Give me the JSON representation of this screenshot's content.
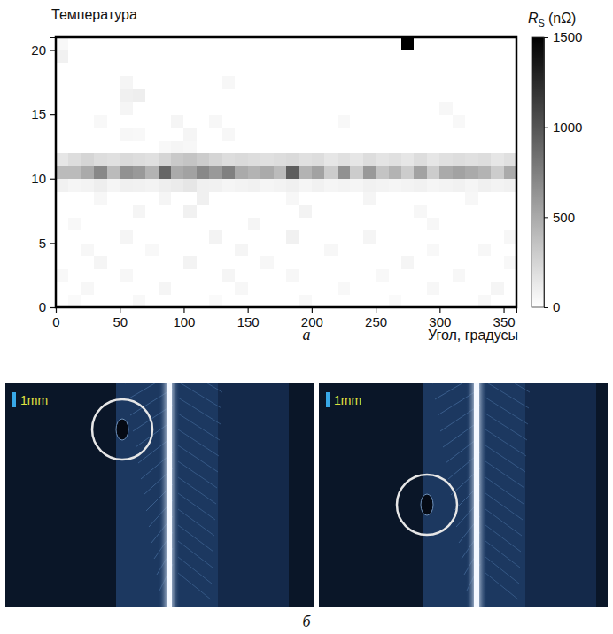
{
  "chart_data": {
    "type": "heatmap",
    "panel_label": "а",
    "y_label": "Температура",
    "x_label": "Угол, градусы",
    "xlim": [
      0,
      360
    ],
    "ylim": [
      0,
      21
    ],
    "xticks": [
      0,
      50,
      100,
      150,
      200,
      250,
      300,
      350
    ],
    "yticks": [
      0,
      5,
      10,
      15,
      20
    ],
    "x_edges": [
      0,
      10,
      20,
      30,
      40,
      50,
      60,
      70,
      80,
      90,
      100,
      110,
      120,
      130,
      140,
      150,
      160,
      170,
      180,
      190,
      200,
      210,
      220,
      230,
      240,
      250,
      260,
      270,
      280,
      290,
      300,
      310,
      320,
      330,
      340,
      350,
      360
    ],
    "y_edges": [
      0,
      1,
      2,
      3,
      4,
      5,
      6,
      7,
      8,
      9,
      10,
      11,
      12,
      13,
      14,
      15,
      16,
      17,
      18,
      19,
      20,
      21
    ],
    "cells": [
      [
        0,
        30,
        0,
        0,
        0,
        0,
        40,
        0,
        0,
        0,
        0,
        0,
        30,
        0,
        0,
        0,
        0,
        0,
        0,
        40,
        0,
        0,
        0,
        0,
        0,
        0,
        30,
        0,
        0,
        0,
        0,
        0,
        0,
        40,
        0,
        0
      ],
      [
        0,
        0,
        50,
        0,
        0,
        0,
        0,
        0,
        60,
        0,
        0,
        0,
        0,
        0,
        50,
        0,
        0,
        0,
        0,
        0,
        0,
        0,
        40,
        0,
        0,
        0,
        0,
        0,
        0,
        50,
        0,
        0,
        0,
        0,
        60,
        0
      ],
      [
        40,
        0,
        0,
        0,
        0,
        50,
        0,
        0,
        0,
        0,
        0,
        0,
        0,
        60,
        0,
        0,
        0,
        0,
        50,
        0,
        0,
        0,
        0,
        0,
        0,
        40,
        0,
        0,
        0,
        0,
        0,
        50,
        0,
        0,
        0,
        0
      ],
      [
        0,
        0,
        0,
        60,
        0,
        0,
        0,
        0,
        0,
        0,
        70,
        0,
        0,
        0,
        0,
        0,
        50,
        0,
        0,
        0,
        0,
        0,
        0,
        0,
        0,
        0,
        0,
        60,
        0,
        0,
        0,
        0,
        0,
        0,
        0,
        40
      ],
      [
        0,
        0,
        50,
        0,
        0,
        0,
        0,
        40,
        0,
        0,
        0,
        0,
        0,
        0,
        60,
        0,
        0,
        0,
        0,
        0,
        0,
        50,
        0,
        0,
        0,
        0,
        0,
        0,
        0,
        40,
        0,
        0,
        0,
        50,
        0,
        0
      ],
      [
        0,
        0,
        0,
        0,
        0,
        60,
        0,
        0,
        0,
        0,
        0,
        0,
        70,
        0,
        0,
        0,
        0,
        0,
        80,
        0,
        0,
        0,
        0,
        0,
        60,
        0,
        0,
        0,
        0,
        0,
        0,
        0,
        0,
        0,
        0,
        50
      ],
      [
        0,
        40,
        0,
        0,
        0,
        0,
        0,
        0,
        0,
        0,
        0,
        0,
        0,
        0,
        0,
        60,
        0,
        0,
        0,
        0,
        0,
        0,
        0,
        0,
        0,
        0,
        0,
        0,
        0,
        50,
        0,
        0,
        0,
        0,
        0,
        0
      ],
      [
        0,
        0,
        0,
        0,
        0,
        0,
        60,
        0,
        0,
        0,
        80,
        0,
        0,
        0,
        0,
        0,
        0,
        0,
        0,
        70,
        0,
        0,
        0,
        0,
        0,
        0,
        0,
        0,
        50,
        0,
        0,
        0,
        0,
        0,
        0,
        0
      ],
      [
        0,
        0,
        0,
        50,
        0,
        0,
        0,
        0,
        60,
        0,
        0,
        90,
        0,
        0,
        0,
        0,
        0,
        0,
        50,
        0,
        0,
        0,
        0,
        0,
        60,
        0,
        0,
        0,
        0,
        0,
        0,
        0,
        50,
        0,
        0,
        0
      ],
      [
        80,
        60,
        70,
        100,
        60,
        90,
        80,
        70,
        100,
        120,
        150,
        90,
        80,
        60,
        70,
        80,
        60,
        70,
        90,
        60,
        80,
        60,
        70,
        60,
        80,
        70,
        60,
        70,
        80,
        60,
        70,
        80,
        60,
        90,
        70,
        80
      ],
      [
        400,
        400,
        500,
        700,
        400,
        650,
        600,
        450,
        900,
        500,
        550,
        700,
        600,
        750,
        500,
        450,
        500,
        400,
        950,
        450,
        550,
        300,
        650,
        300,
        600,
        350,
        450,
        300,
        550,
        300,
        500,
        550,
        500,
        450,
        300,
        500
      ],
      [
        150,
        200,
        250,
        200,
        180,
        220,
        200,
        180,
        250,
        320,
        350,
        300,
        250,
        200,
        220,
        200,
        180,
        200,
        220,
        180,
        200,
        150,
        180,
        150,
        200,
        160,
        180,
        150,
        200,
        150,
        180,
        200,
        180,
        200,
        150,
        180
      ],
      [
        0,
        0,
        0,
        0,
        0,
        0,
        0,
        0,
        40,
        60,
        50,
        0,
        0,
        0,
        0,
        0,
        0,
        0,
        0,
        0,
        0,
        0,
        0,
        0,
        0,
        0,
        0,
        0,
        0,
        0,
        0,
        0,
        0,
        0,
        0,
        0
      ],
      [
        0,
        0,
        0,
        0,
        0,
        50,
        40,
        0,
        0,
        0,
        60,
        0,
        0,
        50,
        0,
        0,
        0,
        0,
        0,
        0,
        0,
        0,
        0,
        0,
        0,
        0,
        0,
        0,
        0,
        0,
        0,
        0,
        0,
        0,
        0,
        0
      ],
      [
        0,
        0,
        0,
        40,
        0,
        0,
        0,
        0,
        0,
        60,
        0,
        0,
        50,
        0,
        0,
        0,
        0,
        0,
        0,
        0,
        0,
        0,
        40,
        0,
        0,
        0,
        0,
        0,
        0,
        0,
        0,
        40,
        0,
        0,
        0,
        0
      ],
      [
        0,
        0,
        0,
        0,
        0,
        60,
        0,
        0,
        0,
        0,
        0,
        0,
        0,
        0,
        0,
        0,
        0,
        0,
        0,
        0,
        0,
        0,
        0,
        0,
        0,
        0,
        0,
        0,
        0,
        0,
        50,
        0,
        0,
        0,
        0,
        0
      ],
      [
        0,
        0,
        0,
        0,
        0,
        90,
        100,
        0,
        0,
        0,
        0,
        0,
        0,
        0,
        0,
        0,
        0,
        0,
        0,
        0,
        0,
        0,
        0,
        0,
        0,
        0,
        0,
        0,
        0,
        0,
        0,
        0,
        0,
        0,
        0,
        0
      ],
      [
        0,
        0,
        0,
        0,
        0,
        60,
        0,
        0,
        0,
        0,
        0,
        0,
        0,
        50,
        0,
        0,
        0,
        0,
        0,
        0,
        0,
        0,
        0,
        0,
        0,
        0,
        0,
        0,
        0,
        0,
        0,
        0,
        0,
        0,
        0,
        0
      ],
      [
        0,
        0,
        0,
        0,
        0,
        0,
        0,
        0,
        0,
        0,
        0,
        0,
        0,
        0,
        0,
        0,
        0,
        0,
        0,
        0,
        0,
        0,
        0,
        0,
        0,
        0,
        0,
        0,
        0,
        0,
        0,
        0,
        0,
        0,
        0,
        0
      ],
      [
        80,
        0,
        0,
        0,
        0,
        0,
        0,
        0,
        0,
        0,
        0,
        0,
        0,
        0,
        0,
        0,
        0,
        0,
        0,
        0,
        0,
        0,
        0,
        0,
        0,
        0,
        0,
        0,
        0,
        0,
        0,
        0,
        0,
        0,
        0,
        0
      ],
      [
        40,
        0,
        0,
        0,
        0,
        0,
        0,
        0,
        0,
        0,
        0,
        0,
        0,
        0,
        0,
        0,
        0,
        0,
        0,
        0,
        0,
        0,
        0,
        0,
        0,
        0,
        0,
        1500,
        0,
        0,
        0,
        0,
        0,
        0,
        0,
        0
      ]
    ],
    "colorbar": {
      "title": "R",
      "title_sub": "S",
      "unit": "(nΩ)",
      "range": [
        0,
        1500
      ],
      "ticks": [
        0,
        500,
        1000,
        1500
      ]
    }
  },
  "photo_panel": {
    "panel_label": "б",
    "photos": [
      {
        "scale_label": "1mm"
      },
      {
        "scale_label": "1mm"
      }
    ]
  }
}
